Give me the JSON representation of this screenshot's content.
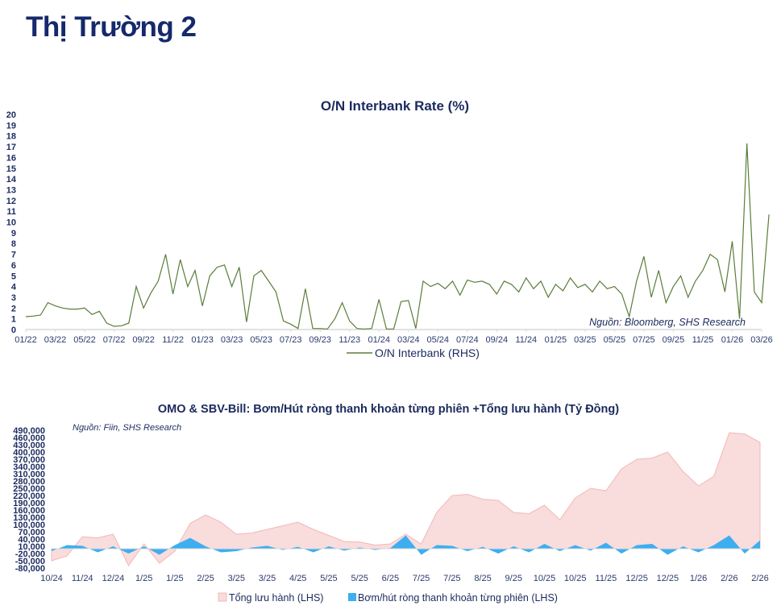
{
  "page_title": "Thị Trường 2",
  "chart_data": [
    {
      "type": "line",
      "title": "O/N Interbank Rate (%)",
      "source": "Nguồn:  Bloomberg, SHS Research",
      "legend": [
        "O/N Interbank (RHS)"
      ],
      "legend_position": "bottom",
      "ylim": [
        0,
        20
      ],
      "yticks": [
        "0",
        "1",
        "2",
        "3",
        "4",
        "5",
        "6",
        "7",
        "8",
        "9",
        "10",
        "11",
        "12",
        "13",
        "14",
        "15",
        "16",
        "17",
        "18",
        "19",
        "20"
      ],
      "xticks": [
        "01/22",
        "03/22",
        "05/22",
        "07/22",
        "09/22",
        "11/22",
        "01/23",
        "03/23",
        "05/23",
        "07/23",
        "09/23",
        "11/23",
        "01/24",
        "03/24",
        "05/24",
        "07/24",
        "09/24",
        "11/24",
        "01/25",
        "03/25",
        "05/25",
        "07/25",
        "09/25",
        "11/25",
        "01/26",
        "03/26"
      ],
      "x_note": "semi-monthly samples starting 01/2022",
      "color": "#5a7d3a",
      "series": [
        {
          "name": "O/N Interbank (RHS)",
          "values": [
            1.2,
            1.25,
            1.35,
            2.5,
            2.2,
            2.0,
            1.9,
            1.9,
            2.0,
            1.4,
            1.7,
            0.6,
            0.3,
            0.35,
            0.6,
            4.0,
            2.0,
            3.4,
            4.5,
            7.0,
            3.3,
            6.5,
            4.0,
            5.5,
            2.2,
            5.0,
            5.8,
            6.0,
            4.0,
            5.8,
            0.7,
            5.0,
            5.5,
            4.5,
            3.5,
            0.8,
            0.5,
            0.1,
            3.8,
            0.1,
            0.1,
            0.05,
            1.0,
            2.5,
            0.8,
            0.1,
            0.05,
            0.1,
            2.8,
            0.05,
            0.05,
            2.6,
            2.7,
            0.1,
            4.5,
            4.0,
            4.3,
            3.8,
            4.5,
            3.2,
            4.6,
            4.4,
            4.5,
            4.2,
            3.3,
            4.5,
            4.2,
            3.5,
            4.8,
            3.8,
            4.5,
            3.0,
            4.2,
            3.6,
            4.8,
            3.9,
            4.2,
            3.5,
            4.5,
            3.8,
            4.0,
            3.3,
            1.2,
            4.5,
            6.8,
            3.0,
            5.5,
            2.5,
            4.0,
            5.0,
            3.0,
            4.5,
            5.5,
            7.0,
            6.5,
            3.5,
            8.2,
            1.0,
            17.3,
            3.5,
            2.5,
            10.7
          ]
        }
      ]
    },
    {
      "type": "area",
      "title": "OMO & SBV-Bill: Bơm/Hút ròng thanh khoản từng phiên +Tổng lưu hành (Tỷ Đồng)",
      "source": "Nguồn:  Fiin, SHS Research",
      "legend_position": "bottom",
      "ylim": [
        -80000,
        490000
      ],
      "yticks": [
        "490,000",
        "460,000",
        "430,000",
        "400,000",
        "370,000",
        "340,000",
        "310,000",
        "280,000",
        "250,000",
        "220,000",
        "190,000",
        "160,000",
        "130,000",
        "100,000",
        "70,000",
        "40,000",
        "10,000",
        "-20,000",
        "-50,000",
        "-80,000"
      ],
      "xticks": [
        "10/24",
        "11/24",
        "12/24",
        "1/25",
        "1/25",
        "2/25",
        "3/25",
        "3/25",
        "4/25",
        "5/25",
        "5/25",
        "6/25",
        "7/25",
        "7/25",
        "8/25",
        "9/25",
        "10/25",
        "10/25",
        "11/25",
        "12/25",
        "12/25",
        "1/26",
        "2/26",
        "2/26"
      ],
      "x_note": "samples at half-tick intervals",
      "series": [
        {
          "name": "Tổng lưu hành (LHS)",
          "color": "#f9dcdc",
          "line": "#f2b8b8",
          "values": [
            -50000,
            -30000,
            50000,
            45000,
            60000,
            -70000,
            20000,
            -60000,
            -10000,
            105000,
            140000,
            110000,
            60000,
            65000,
            80000,
            95000,
            110000,
            80000,
            55000,
            30000,
            28000,
            15000,
            20000,
            60000,
            20000,
            150000,
            220000,
            225000,
            205000,
            200000,
            150000,
            145000,
            180000,
            120000,
            210000,
            250000,
            240000,
            330000,
            370000,
            375000,
            400000,
            320000,
            260000,
            300000,
            480000,
            475000,
            440000
          ]
        },
        {
          "name": "Bơm/hút ròng thanh khoản từng phiên (LHS)",
          "color": "#3daef0",
          "values": [
            -10000,
            15000,
            12000,
            -15000,
            10000,
            -20000,
            10000,
            -25000,
            15000,
            45000,
            10000,
            -15000,
            -10000,
            5000,
            12000,
            -5000,
            8000,
            -15000,
            10000,
            -8000,
            5000,
            -5000,
            3000,
            55000,
            -25000,
            15000,
            12000,
            -10000,
            8000,
            -20000,
            10000,
            -15000,
            20000,
            -10000,
            15000,
            -8000,
            25000,
            -20000,
            15000,
            20000,
            -25000,
            10000,
            -15000,
            15000,
            55000,
            -20000,
            35000
          ]
        }
      ]
    }
  ]
}
